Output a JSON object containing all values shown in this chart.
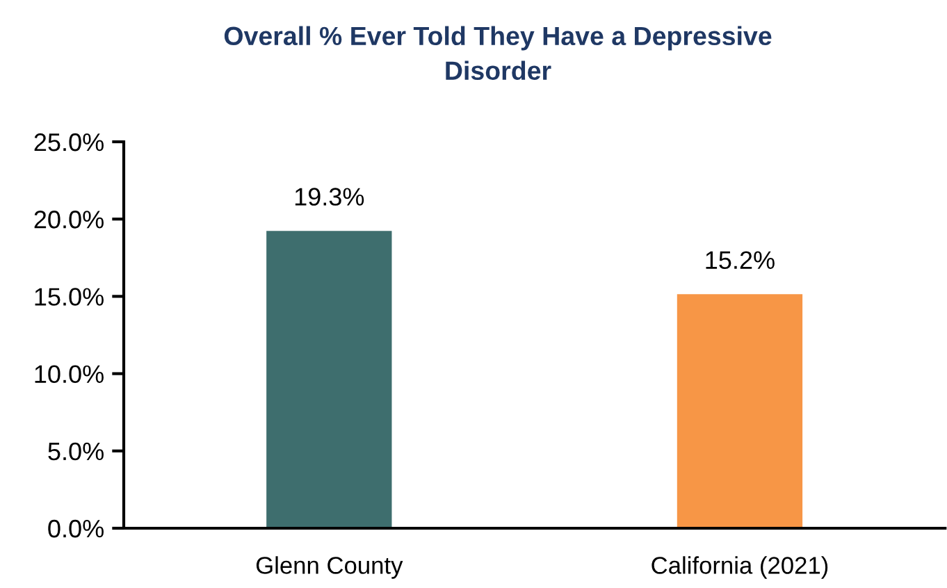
{
  "chart_data": {
    "type": "bar",
    "title": "Overall % Ever Told They Have a Depressive\nDisorder",
    "categories": [
      "Glenn County",
      "California (2021)"
    ],
    "values": [
      19.3,
      15.2
    ],
    "colors": [
      "#3e6e6e",
      "#f79646"
    ],
    "value_labels": [
      "19.3%",
      "15.2%"
    ],
    "ylim": [
      0,
      25
    ],
    "yticks": [
      {
        "value": 0,
        "label": "0.0%"
      },
      {
        "value": 5,
        "label": "5.0%"
      },
      {
        "value": 10,
        "label": "10.0%"
      },
      {
        "value": 15,
        "label": "15.0%"
      },
      {
        "value": 20,
        "label": "20.0%"
      },
      {
        "value": 25,
        "label": "25.0%"
      }
    ]
  }
}
